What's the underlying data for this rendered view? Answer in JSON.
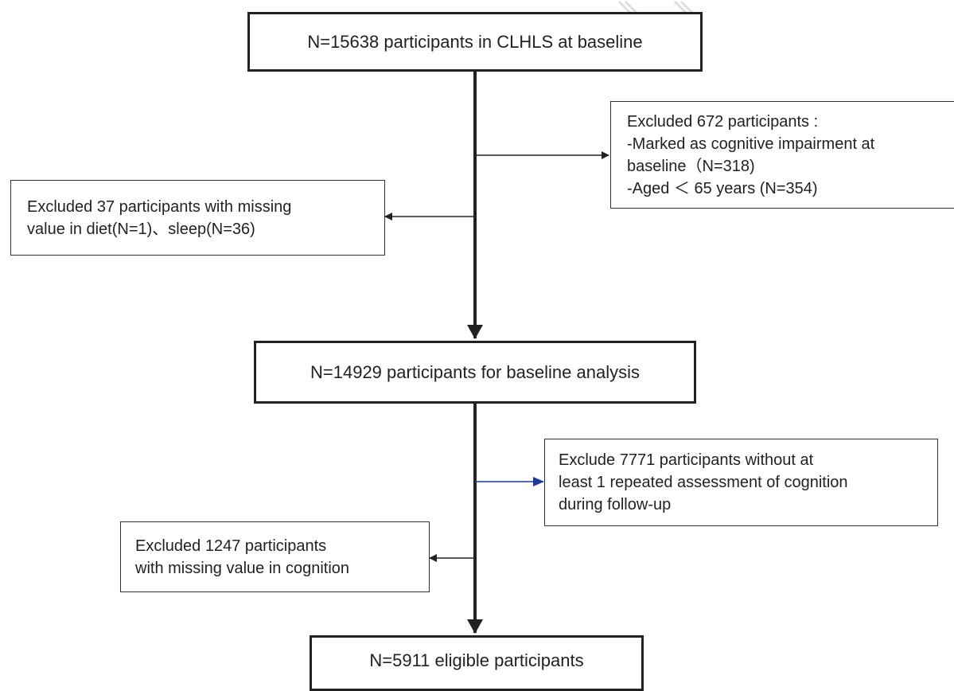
{
  "flow": {
    "baseline": "N=15638 participants in CLHLS at baseline",
    "excluded_672": {
      "l1": "Excluded 672 participants :",
      "l2": "-Marked as cognitive impairment at",
      "l3": "baseline（N=318)",
      "l4": "-Aged ＜ 65 years (N=354)"
    },
    "excluded_37": {
      "l1": "Excluded 37 participants with missing",
      "l2": "value in diet(N=1)、sleep(N=36)"
    },
    "baseline_analysis": "N=14929 participants for baseline analysis",
    "exclude_7771": {
      "l1": "Exclude 7771 participants without at",
      "l2": "least 1 repeated assessment of cognition",
      "l3": "during follow-up"
    },
    "excluded_1247": {
      "l1": "Excluded 1247 participants",
      "l2": "with missing value in cognition"
    },
    "eligible": "N=5911  eligible participants"
  },
  "colors": {
    "line": "#222222",
    "blue_arrow": "#1f3a93",
    "border": "#333333"
  }
}
